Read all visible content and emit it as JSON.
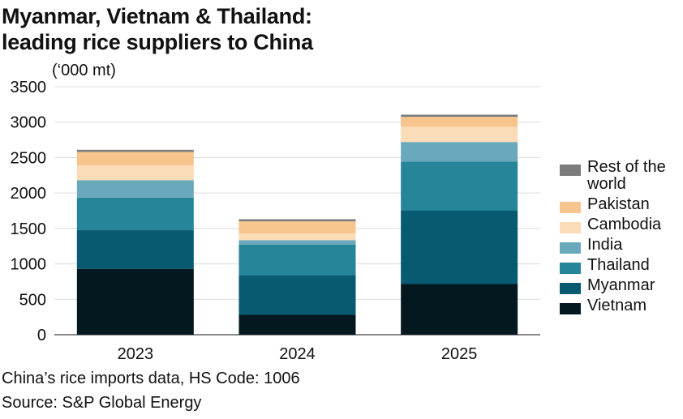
{
  "title": {
    "line1": "Myanmar, Vietnam & Thailand:",
    "line2": "leading rice suppliers to China"
  },
  "unit_label": "(‘000 mt)",
  "notes": {
    "data_note": "China’s rice imports data, HS Code: 1006",
    "source": "Source: S&P Global Energy"
  },
  "colors": {
    "Vietnam": "#041820",
    "Myanmar": "#075a70",
    "Thailand": "#27859a",
    "India": "#6aa9bb",
    "Cambodia": "#fbdcb8",
    "Pakistan": "#f6c48d",
    "Rest of the world": "#7c7c7c",
    "grid": "#dcdcdc",
    "axis": "#111111"
  },
  "legend": [
    {
      "key": "Rest of the world",
      "label": "Rest of the world"
    },
    {
      "key": "Pakistan",
      "label": "Pakistan"
    },
    {
      "key": "Cambodia",
      "label": "Cambodia"
    },
    {
      "key": "India",
      "label": "India"
    },
    {
      "key": "Thailand",
      "label": "Thailand"
    },
    {
      "key": "Myanmar",
      "label": "Myanmar"
    },
    {
      "key": "Vietnam",
      "label": "Vietnam"
    }
  ],
  "chart_data": {
    "type": "bar",
    "stacked": true,
    "title": "Myanmar, Vietnam & Thailand: leading rice suppliers to China",
    "ylabel": "(‘000 mt)",
    "xlabel": "",
    "ylim": [
      0,
      3500
    ],
    "yticks": [
      0,
      500,
      1000,
      1500,
      2000,
      2500,
      3000,
      3500
    ],
    "grid": true,
    "legend_position": "right",
    "categories": [
      "2023",
      "2024",
      "2025"
    ],
    "series": [
      {
        "name": "Vietnam",
        "values": [
          930,
          280,
          715
        ]
      },
      {
        "name": "Myanmar",
        "values": [
          545,
          560,
          1040
        ]
      },
      {
        "name": "Thailand",
        "values": [
          460,
          430,
          690
        ]
      },
      {
        "name": "India",
        "values": [
          245,
          65,
          275
        ]
      },
      {
        "name": "Cambodia",
        "values": [
          210,
          95,
          215
        ]
      },
      {
        "name": "Pakistan",
        "values": [
          190,
          170,
          140
        ]
      },
      {
        "name": "Rest of the world",
        "values": [
          30,
          30,
          30
        ]
      }
    ]
  }
}
